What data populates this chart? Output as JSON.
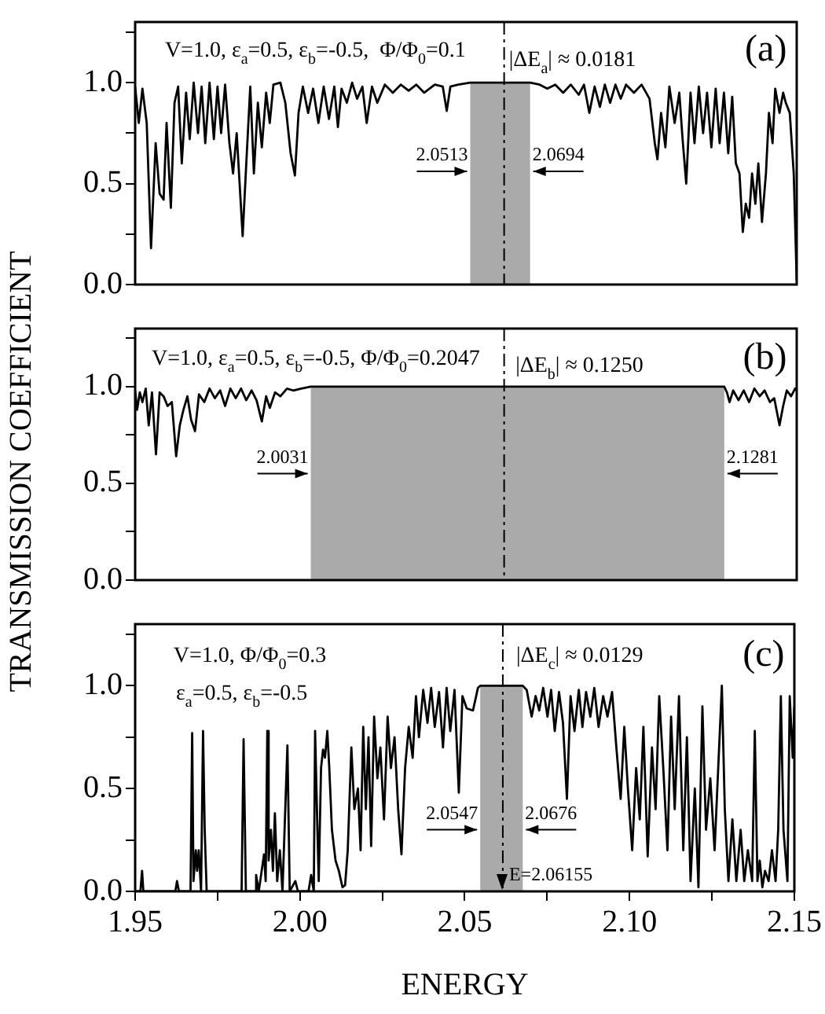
{
  "chart_data": [
    {
      "type": "line",
      "xlim": [
        1.95,
        2.15
      ],
      "ylim": [
        0,
        1.3
      ],
      "yticks": [
        {
          "value": 0,
          "label": "0.0"
        },
        {
          "value": 0.25,
          "label": null
        },
        {
          "value": 0.5,
          "label": "0.5"
        },
        {
          "value": 0.75,
          "label": null
        },
        {
          "value": 1,
          "label": "1.0"
        },
        {
          "value": 1.25,
          "label": null
        }
      ],
      "tick_labels": "y",
      "legend": false,
      "grid": false,
      "marker": "none",
      "line_style": "solid",
      "series": [
        {
          "color": "#000000",
          "x": [
            1.95,
            1.9511,
            1.9522,
            1.9535,
            1.9548,
            1.9562,
            1.9574,
            1.9586,
            1.9595,
            1.9608,
            1.9619,
            1.963,
            1.9641,
            1.9654,
            1.9665,
            1.9677,
            1.969,
            1.9701,
            1.9712,
            1.9725,
            1.9738,
            1.9749,
            1.976,
            1.9772,
            1.9785,
            1.9796,
            1.9807,
            1.9825,
            1.9836,
            1.9848,
            1.9859,
            1.9871,
            1.9883,
            1.9896,
            1.9907,
            1.9918,
            1.9939,
            1.9954,
            1.997,
            1.9983,
            1.9994,
            2.0007,
            2.0023,
            2.0038,
            2.0054,
            2.007,
            2.0086,
            2.0102,
            2.0113,
            2.0124,
            2.014,
            2.0156,
            2.0171,
            2.0187,
            2.02,
            2.0216,
            2.0232,
            2.0255,
            2.0279,
            2.0303,
            2.0327,
            2.035,
            2.0374,
            2.0406,
            2.043,
            2.0442,
            2.0453,
            2.0477,
            2.0513,
            2.0694,
            2.0723,
            2.0746,
            2.077,
            2.0794,
            2.0817,
            2.0841,
            2.0857,
            2.0873,
            2.0889,
            2.0905,
            2.092,
            2.0936,
            2.0952,
            2.0968,
            2.0984,
            2.1008,
            2.1031,
            2.1055,
            2.1071,
            2.1079,
            2.109,
            2.1103,
            2.1115,
            2.1131,
            2.1145,
            2.1155,
            2.1166,
            2.1179,
            2.1191,
            2.1204,
            2.1217,
            2.1229,
            2.1242,
            2.1255,
            2.1267,
            2.128,
            2.1293,
            2.1305,
            2.1316,
            2.1327,
            2.1337,
            2.1346,
            2.1356,
            2.1365,
            2.1375,
            2.1384,
            2.1395,
            2.1407,
            2.1416,
            2.1427,
            2.1435,
            2.1448,
            2.1459,
            2.1467,
            2.1479,
            2.1491,
            2.15
          ],
          "values": [
            0.98,
            0.8,
            0.97,
            0.8,
            0.18,
            0.7,
            0.45,
            0.42,
            0.8,
            0.38,
            0.9,
            0.98,
            0.6,
            0.95,
            0.72,
            1.0,
            0.75,
            0.98,
            0.7,
            1.0,
            0.72,
            0.98,
            0.75,
            0.99,
            0.7,
            0.55,
            0.75,
            0.24,
            0.6,
            0.98,
            0.55,
            0.9,
            0.68,
            0.95,
            0.8,
            0.99,
            1.0,
            0.9,
            0.65,
            0.54,
            0.85,
            0.98,
            0.85,
            0.97,
            0.8,
            0.98,
            0.82,
            0.98,
            0.78,
            0.97,
            0.9,
            1.0,
            0.92,
            0.98,
            0.8,
            0.98,
            0.9,
            0.99,
            0.95,
            0.99,
            0.96,
            0.99,
            0.95,
            0.99,
            0.98,
            0.86,
            0.98,
            0.99,
            1.0,
            1.0,
            0.99,
            0.97,
            0.99,
            0.95,
            0.99,
            0.94,
            0.99,
            0.85,
            0.98,
            0.88,
            0.99,
            0.9,
            0.99,
            0.92,
            0.99,
            0.95,
            0.99,
            0.92,
            0.7,
            0.62,
            0.85,
            0.68,
            0.98,
            0.8,
            0.95,
            0.72,
            0.5,
            0.95,
            0.7,
            0.98,
            0.75,
            0.95,
            0.68,
            0.97,
            0.7,
            0.95,
            0.65,
            0.93,
            0.6,
            0.55,
            0.26,
            0.4,
            0.33,
            0.55,
            0.4,
            0.6,
            0.31,
            0.55,
            0.85,
            0.7,
            0.97,
            0.85,
            0.95,
            0.9,
            0.85,
            0.55,
            0.02
          ]
        }
      ],
      "bands": [
        {
          "axis": "x",
          "from": 2.0513,
          "to": 2.0694,
          "color": "#aaaaaa"
        }
      ],
      "ref_lines": [
        {
          "axis": "x",
          "value": 2.06155,
          "color": "#000000",
          "line_style": "dashed"
        }
      ],
      "annotations": [
        "V=1.0, ε$_{a}$=0.5, ε$_{b}$=-0.5,  Φ/Φ$_{0}$=0.1",
        "|ΔE$_{a}$| ≈ 0.0181",
        "(a)",
        {
          "text": "2.0513",
          "x": 2.0513,
          "y": 0.56
        },
        {
          "text": "2.0694",
          "x": 2.0694,
          "y": 0.56
        }
      ]
    },
    {
      "type": "line",
      "xlim": [
        1.95,
        2.15
      ],
      "ylim": [
        0,
        1.3
      ],
      "yticks": [
        {
          "value": 0,
          "label": "0.0"
        },
        {
          "value": 0.25,
          "label": null
        },
        {
          "value": 0.5,
          "label": "0.5"
        },
        {
          "value": 0.75,
          "label": null
        },
        {
          "value": 1,
          "label": "1.0"
        },
        {
          "value": 1.25,
          "label": null
        }
      ],
      "tick_labels": "y",
      "legend": false,
      "grid": false,
      "marker": "none",
      "line_style": "solid",
      "ylabel": "TRANSMISSION COEFFICIENT",
      "series": [
        {
          "color": "#000000",
          "x": [
            1.95,
            1.9506,
            1.9514,
            1.9522,
            1.9532,
            1.9541,
            1.9551,
            1.9563,
            1.9574,
            1.9586,
            1.9598,
            1.9611,
            1.9624,
            1.9635,
            1.9646,
            1.9658,
            1.9669,
            1.9681,
            1.9693,
            1.9709,
            1.9725,
            1.9741,
            1.9757,
            1.9772,
            1.9788,
            1.9804,
            1.982,
            1.9836,
            1.9852,
            1.9867,
            1.9883,
            1.9896,
            1.9907,
            1.9923,
            1.9939,
            1.9959,
            1.9978,
            2.0002,
            2.0031,
            2.1281,
            2.1289,
            2.1297,
            2.1308,
            2.1324,
            2.134,
            2.1356,
            2.1372,
            2.1388,
            2.1403,
            2.1419,
            2.1432,
            2.1448,
            2.1459,
            2.147,
            2.1483,
            2.1495,
            2.15
          ],
          "values": [
            0.98,
            0.88,
            0.97,
            0.92,
            0.99,
            0.8,
            0.97,
            0.65,
            0.97,
            0.95,
            0.9,
            0.92,
            0.64,
            0.8,
            0.88,
            0.95,
            0.83,
            0.77,
            0.96,
            0.92,
            0.99,
            0.94,
            0.98,
            0.9,
            0.99,
            0.94,
            0.99,
            0.93,
            0.98,
            0.93,
            0.82,
            0.95,
            0.89,
            0.97,
            0.95,
            0.99,
            0.98,
            0.99,
            1.0,
            1.0,
            0.97,
            0.92,
            0.98,
            0.93,
            0.98,
            0.92,
            0.99,
            0.95,
            0.98,
            0.92,
            0.94,
            0.8,
            0.9,
            0.98,
            0.95,
            0.99,
            0.98
          ]
        }
      ],
      "bands": [
        {
          "axis": "x",
          "from": 2.0031,
          "to": 2.1281,
          "color": "#aaaaaa"
        }
      ],
      "ref_lines": [
        {
          "axis": "x",
          "value": 2.06155,
          "color": "#000000",
          "line_style": "dashed"
        }
      ],
      "annotations": [
        "V=1.0, ε$_{a}$=0.5, ε$_{b}$=-0.5, Φ/Φ$_{0}$=0.2047",
        "|ΔE$_{b}$| ≈ 0.1250",
        "(b)",
        {
          "text": "2.0031",
          "x": 2.0031,
          "y": 0.55
        },
        {
          "text": "2.1281",
          "x": 2.1281,
          "y": 0.55
        }
      ]
    },
    {
      "type": "line",
      "xlim": [
        1.95,
        2.15
      ],
      "ylim": [
        0,
        1.3
      ],
      "xticks": [
        {
          "value": 1.95,
          "label": "1.95"
        },
        {
          "value": 1.975,
          "label": null
        },
        {
          "value": 2,
          "label": "2.00"
        },
        {
          "value": 2.025,
          "label": null
        },
        {
          "value": 2.05,
          "label": "2.05"
        },
        {
          "value": 2.075,
          "label": null
        },
        {
          "value": 2.1,
          "label": "2.10"
        },
        {
          "value": 2.125,
          "label": null
        },
        {
          "value": 2.15,
          "label": "2.15"
        }
      ],
      "yticks": [
        {
          "value": 0,
          "label": "0.0"
        },
        {
          "value": 0.25,
          "label": null
        },
        {
          "value": 0.5,
          "label": "0.5"
        },
        {
          "value": 0.75,
          "label": null
        },
        {
          "value": 1,
          "label": "1.0"
        },
        {
          "value": 1.25,
          "label": null
        }
      ],
      "legend": false,
      "grid": false,
      "marker": "none",
      "line_style": "solid",
      "xlabel": "ENERGY",
      "series": [
        {
          "color": "#000000",
          "x": [
            1.95,
            1.9516,
            1.9521,
            1.9525,
            1.9622,
            1.9627,
            1.9633,
            1.9668,
            1.9673,
            1.9677,
            1.9684,
            1.9688,
            1.9693,
            1.97,
            1.9706,
            1.9711,
            1.9717,
            1.9823,
            1.9829,
            1.9836,
            1.9863,
            1.9867,
            1.9875,
            1.9891,
            1.9896,
            1.9901,
            1.9905,
            1.9912,
            1.9918,
            1.9924,
            1.9931,
            1.9939,
            1.9947,
            1.9962,
            1.9969,
            1.9986,
            1.9994,
            2.0026,
            2.0034,
            2.0042,
            2.0046,
            2.0053,
            2.0057,
            2.0064,
            2.007,
            2.0076,
            2.0083,
            2.0089,
            2.0097,
            2.0108,
            2.0118,
            2.0129,
            2.0137,
            2.0145,
            2.0156,
            2.0165,
            2.0176,
            2.0184,
            2.0192,
            2.02,
            2.0208,
            2.0216,
            2.0225,
            2.0235,
            2.0244,
            2.0255,
            2.0266,
            2.0276,
            2.0287,
            2.0298,
            2.0308,
            2.0319,
            2.033,
            2.0342,
            2.0352,
            2.0361,
            2.0374,
            2.0387,
            2.0398,
            2.0409,
            2.0422,
            2.0434,
            2.0445,
            2.0456,
            2.0469,
            2.0482,
            2.0493,
            2.0506,
            2.0525,
            2.054,
            2.0547,
            2.0676,
            2.0688,
            2.0703,
            2.0715,
            2.0726,
            2.0738,
            2.0751,
            2.0762,
            2.0773,
            2.0786,
            2.0798,
            2.081,
            2.0821,
            2.0833,
            2.0846,
            2.0857,
            2.0868,
            2.0881,
            2.0893,
            2.0906,
            2.092,
            2.0933,
            2.0947,
            2.096,
            2.0973,
            2.0984,
            2.0995,
            2.1008,
            2.102,
            2.1031,
            2.1042,
            2.1055,
            2.1068,
            2.1079,
            2.109,
            2.1103,
            2.1115,
            2.1126,
            2.1137,
            2.115,
            2.1163,
            2.1174,
            2.1185,
            2.1198,
            2.1209,
            2.1221,
            2.1232,
            2.1245,
            2.1258,
            2.1269,
            2.128,
            2.1289,
            2.13,
            2.1312,
            2.1324,
            2.1337,
            2.1348,
            2.1359,
            2.1372,
            2.138,
            2.1388,
            2.1395,
            2.1403,
            2.1411,
            2.1422,
            2.1432,
            2.1443,
            2.1451,
            2.1459,
            2.1467,
            2.1479,
            2.1486,
            2.1495,
            2.15
          ],
          "values": [
            0,
            0,
            0.1,
            0,
            0,
            0.05,
            0,
            0,
            0.77,
            0.05,
            0.2,
            0.1,
            0.2,
            0,
            0.78,
            0.3,
            0,
            0,
            0.74,
            0,
            0,
            0.08,
            0,
            0.18,
            0.05,
            0.78,
            0.15,
            0.3,
            0.1,
            0.38,
            0.05,
            0.2,
            0,
            0.71,
            0,
            0.05,
            0,
            0,
            0.08,
            0,
            0.78,
            0.3,
            0.05,
            0.6,
            0.69,
            0.65,
            0.78,
            0.6,
            0.3,
            0.15,
            0.1,
            0.02,
            0.03,
            0.2,
            0.7,
            0.4,
            0.5,
            0.2,
            0.8,
            0.4,
            0.75,
            0.22,
            0.85,
            0.55,
            0.7,
            0.35,
            0.85,
            0.6,
            0.75,
            0.4,
            0.18,
            0.6,
            0.8,
            0.65,
            0.95,
            0.75,
            0.98,
            0.82,
            0.99,
            0.8,
            0.97,
            0.7,
            0.99,
            0.78,
            0.98,
            0.48,
            0.95,
            0.89,
            0.88,
            0.99,
            1.0,
            1.0,
            0.98,
            0.85,
            0.95,
            0.88,
            0.99,
            0.85,
            0.98,
            0.78,
            0.97,
            0.82,
            0.45,
            0.95,
            0.78,
            0.98,
            0.8,
            0.97,
            0.85,
            0.99,
            0.8,
            0.95,
            0.85,
            0.97,
            0.7,
            0.45,
            0.8,
            0.5,
            0.2,
            0.6,
            0.35,
            0.8,
            0.17,
            0.7,
            0.4,
            0.95,
            0.58,
            0.2,
            0.85,
            0.4,
            0.95,
            0.2,
            0.75,
            0.05,
            0.5,
            0.02,
            0.9,
            0.3,
            0.55,
            0.2,
            0.6,
            1.0,
            0.4,
            0.05,
            0.35,
            0.05,
            0.3,
            0.05,
            0.2,
            0.05,
            0.78,
            0.05,
            0.15,
            0.02,
            0.1,
            0.05,
            0.2,
            0.05,
            0.3,
            0.95,
            0.3,
            0.05,
            0.95,
            0.65,
            0.9
          ]
        }
      ],
      "bands": [
        {
          "axis": "x",
          "from": 2.0547,
          "to": 2.0676,
          "color": "#aaaaaa"
        }
      ],
      "ref_lines": [
        {
          "axis": "x",
          "value": 2.06155,
          "label": "E=2.06155",
          "color": "#000000",
          "line_style": "dashed"
        }
      ],
      "annotations": [
        "V=1.0, Φ/Φ$_{0}$=0.3",
        "ε$_{a}$=0.5, ε$_{b}$=-0.5",
        "|ΔE$_{c}$| ≈ 0.0129",
        "(c)",
        {
          "text": "2.0547",
          "x": 2.0547,
          "y": 0.3
        },
        {
          "text": "2.0676",
          "x": 2.0676,
          "y": 0.3
        }
      ]
    }
  ]
}
